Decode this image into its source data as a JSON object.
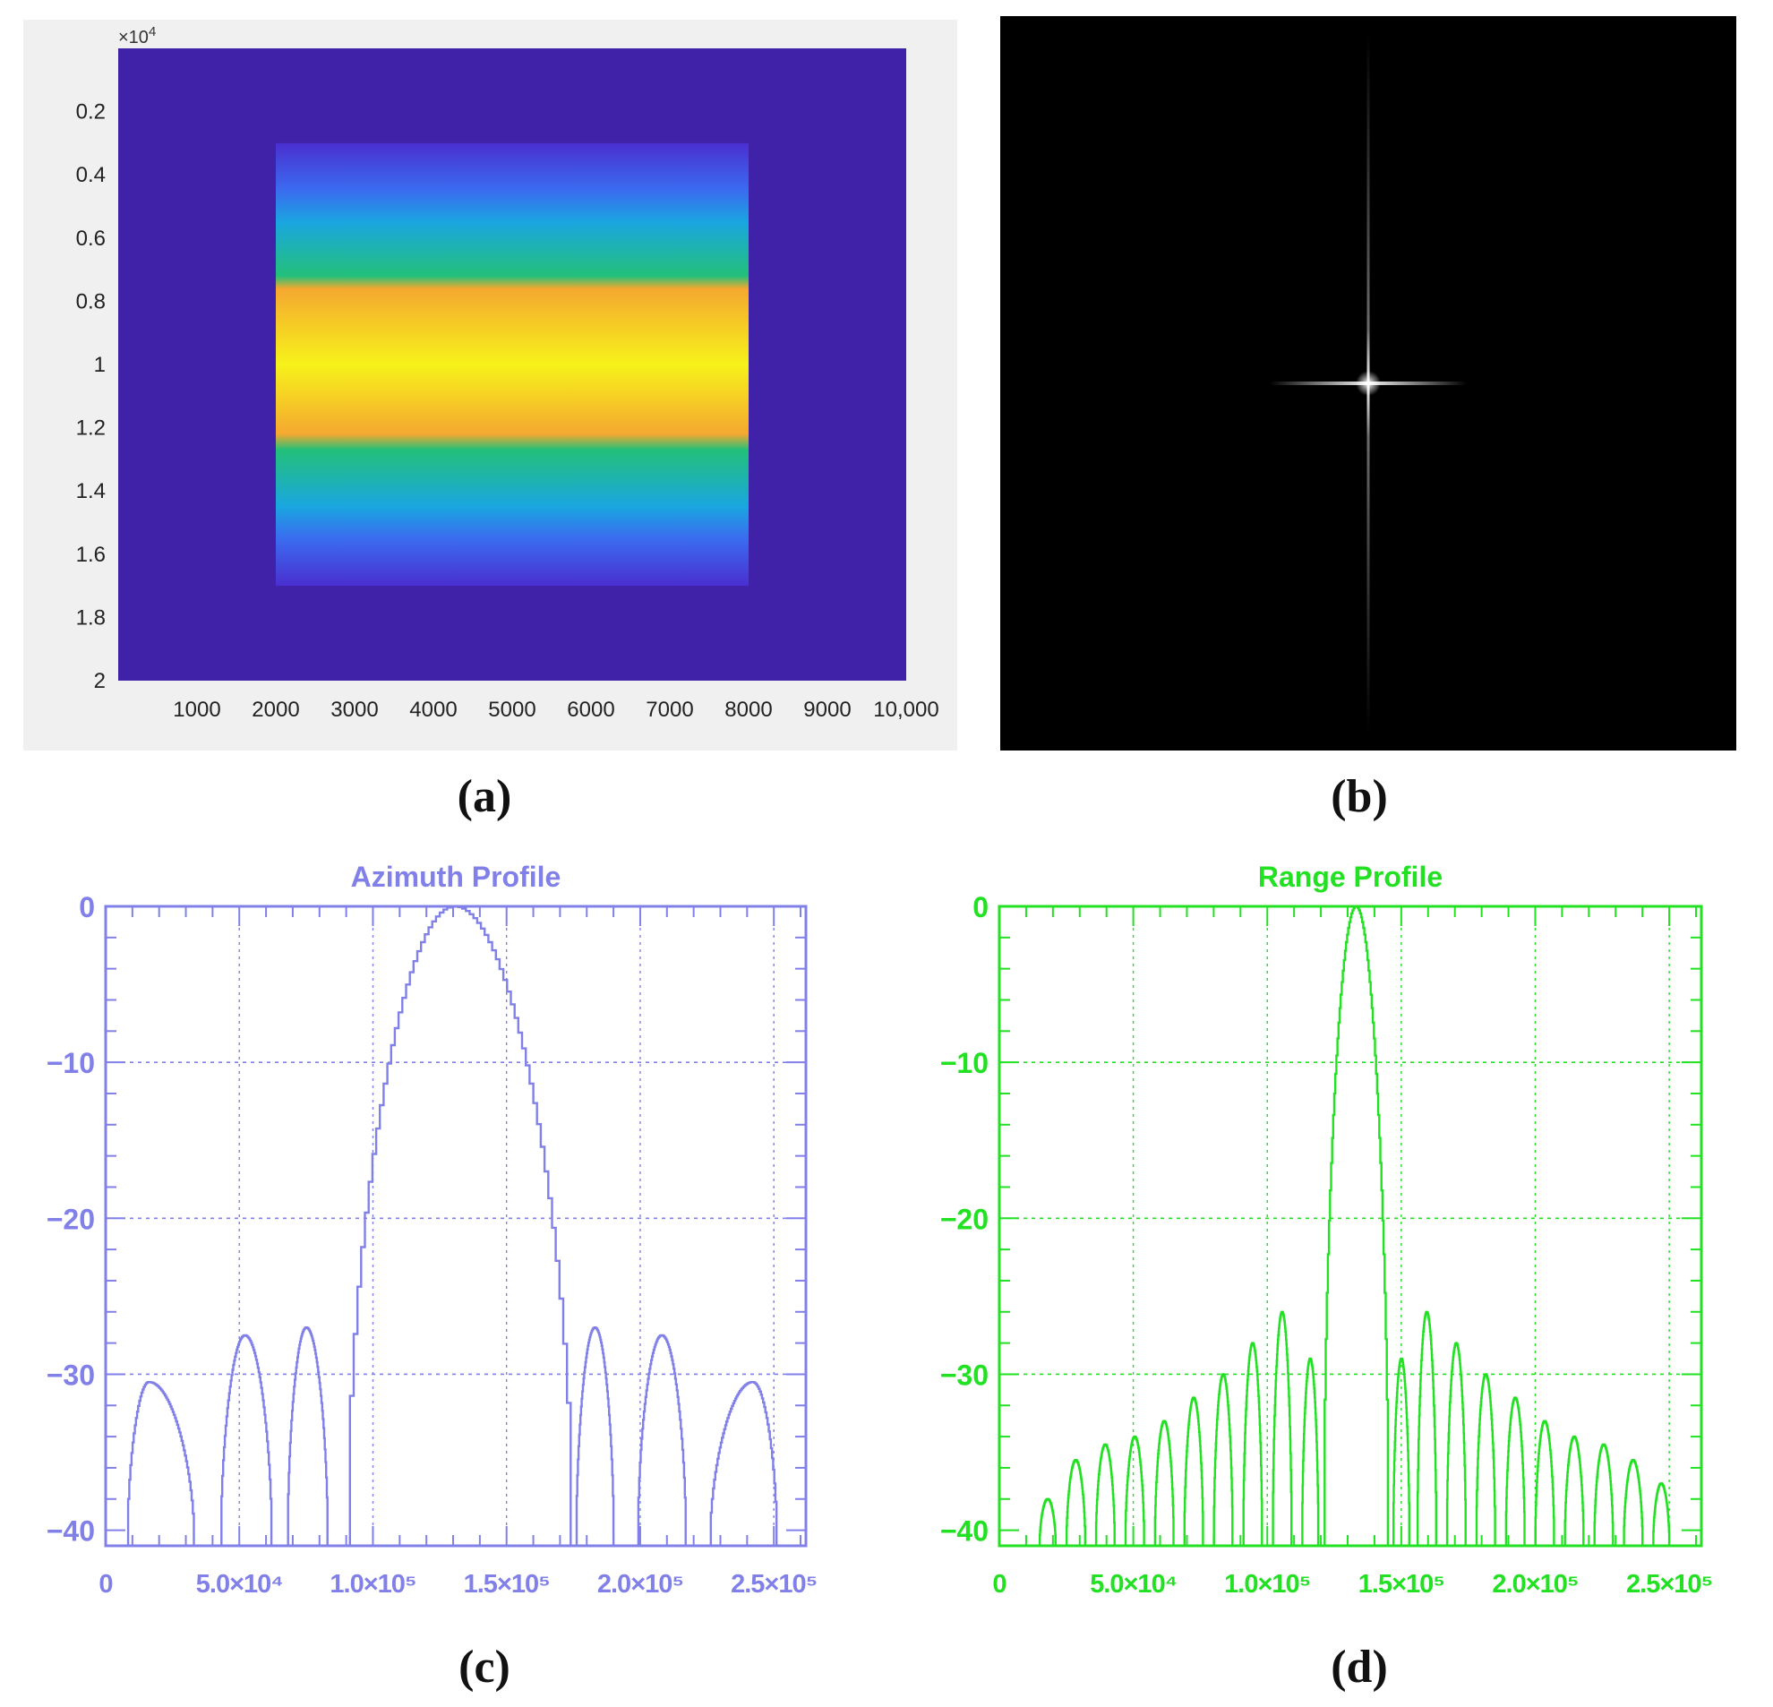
{
  "captions": {
    "a": "(a)",
    "b": "(b)",
    "c": "(c)",
    "d": "(d)"
  },
  "chart_data": [
    {
      "panel": "a",
      "type": "heatmap",
      "title": "",
      "xlabel": "",
      "ylabel": "",
      "y_exponent_label": "×10",
      "y_exponent_power": "4",
      "xlim": [
        0,
        10000
      ],
      "ylim": [
        0,
        2
      ],
      "x_ticks": [
        "1000",
        "2000",
        "3000",
        "4000",
        "5000",
        "6000",
        "7000",
        "8000",
        "9000",
        "10,000"
      ],
      "x_tick_values": [
        1000,
        2000,
        3000,
        4000,
        5000,
        6000,
        7000,
        8000,
        9000,
        10000
      ],
      "y_ticks": [
        "0.2",
        "0.4",
        "0.6",
        "0.8",
        "1",
        "1.2",
        "1.4",
        "1.6",
        "1.8",
        "2"
      ],
      "y_tick_values": [
        0.2,
        0.4,
        0.6,
        0.8,
        1.0,
        1.2,
        1.4,
        1.6,
        1.8,
        2.0
      ],
      "background_color": "#3f22a8",
      "band": {
        "x_range": [
          2000,
          8000
        ],
        "y_range": [
          0.3,
          1.7
        ],
        "gradient_stops": [
          {
            "y": 0.3,
            "color": "#4a2fd0"
          },
          {
            "y": 0.45,
            "color": "#3a6cf0"
          },
          {
            "y": 0.55,
            "color": "#1aa6e0"
          },
          {
            "y": 0.72,
            "color": "#22c07a"
          },
          {
            "y": 0.76,
            "color": "#f5a830"
          },
          {
            "y": 1.0,
            "color": "#f6f21a"
          },
          {
            "y": 1.22,
            "color": "#f5a830"
          },
          {
            "y": 1.27,
            "color": "#22c07a"
          },
          {
            "y": 1.45,
            "color": "#1aa6e0"
          },
          {
            "y": 1.55,
            "color": "#3a6cf0"
          },
          {
            "y": 1.7,
            "color": "#4a2fd0"
          }
        ]
      }
    },
    {
      "panel": "b",
      "type": "heatmap",
      "title": "",
      "background_color": "#000000",
      "description_values": {
        "peak_position_fraction": [
          0.5,
          0.5
        ]
      }
    },
    {
      "panel": "c",
      "type": "line",
      "title": "Azimuth Profile",
      "xlabel": "",
      "ylabel": "",
      "color": "#8080e8",
      "xlim": [
        0,
        262000
      ],
      "ylim": [
        -41,
        0
      ],
      "x_tick_labels": [
        "0",
        "5.0×10⁴",
        "1.0×10⁵",
        "1.5×10⁵",
        "2.0×10⁵",
        "2.5×10⁵"
      ],
      "x_tick_values": [
        0,
        50000,
        100000,
        150000,
        200000,
        250000
      ],
      "y_tick_labels": [
        "0",
        "−10",
        "−20",
        "−30",
        "−40"
      ],
      "y_tick_values": [
        0,
        -10,
        -20,
        -30,
        -40
      ],
      "grid": true,
      "grid_x": [
        50000,
        100000,
        150000,
        200000,
        250000
      ],
      "grid_y": [
        -10,
        -20,
        -30
      ],
      "series": [
        {
          "lobes": [
            {
              "x0": 8000,
              "x1": 33000,
              "peak_x": 16000,
              "peak_y": -30.5
            },
            {
              "x0": 43000,
              "x1": 62000,
              "peak_x": 52000,
              "peak_y": -27.5
            },
            {
              "x0": 68000,
              "x1": 83000,
              "peak_x": 75000,
              "peak_y": -27.0
            },
            {
              "x0": 90000,
              "x1": 174000,
              "peak_x": 130000,
              "peak_y": 0.0
            },
            {
              "x0": 176000,
              "x1": 190000,
              "peak_x": 183000,
              "peak_y": -27.0
            },
            {
              "x0": 199000,
              "x1": 217000,
              "peak_x": 208000,
              "peak_y": -27.5
            },
            {
              "x0": 226000,
              "x1": 251000,
              "peak_x": 242000,
              "peak_y": -30.5
            }
          ]
        }
      ]
    },
    {
      "panel": "d",
      "type": "line",
      "title": "Range Profile",
      "xlabel": "",
      "ylabel": "",
      "color": "#22e022",
      "xlim": [
        0,
        262000
      ],
      "ylim": [
        -41,
        0
      ],
      "x_tick_labels": [
        "0",
        "5.0×10⁴",
        "1.0×10⁵",
        "1.5×10⁵",
        "2.0×10⁵",
        "2.5×10⁵"
      ],
      "x_tick_values": [
        0,
        50000,
        100000,
        150000,
        200000,
        250000
      ],
      "y_tick_labels": [
        "0",
        "−10",
        "−20",
        "−30",
        "−40"
      ],
      "y_tick_values": [
        0,
        -10,
        -20,
        -30,
        -40
      ],
      "grid": true,
      "grid_x": [
        50000,
        100000,
        150000,
        200000,
        250000
      ],
      "grid_y": [
        -10,
        -20,
        -30
      ],
      "series": [
        {
          "lobes": [
            {
              "x0": 15000,
              "x1": 21000,
              "peak_x": 18000,
              "peak_y": -38.0
            },
            {
              "x0": 25000,
              "x1": 32000,
              "peak_x": 28500,
              "peak_y": -35.5
            },
            {
              "x0": 36000,
              "x1": 43000,
              "peak_x": 39500,
              "peak_y": -34.5
            },
            {
              "x0": 47000,
              "x1": 54000,
              "peak_x": 50500,
              "peak_y": -34.0
            },
            {
              "x0": 58000,
              "x1": 65000,
              "peak_x": 61500,
              "peak_y": -33.0
            },
            {
              "x0": 69000,
              "x1": 76000,
              "peak_x": 72500,
              "peak_y": -31.5
            },
            {
              "x0": 80000,
              "x1": 87000,
              "peak_x": 83500,
              "peak_y": -30.0
            },
            {
              "x0": 91000,
              "x1": 98000,
              "peak_x": 94500,
              "peak_y": -28.0
            },
            {
              "x0": 102000,
              "x1": 109000,
              "peak_x": 105500,
              "peak_y": -26.0
            },
            {
              "x0": 113000,
              "x1": 119000,
              "peak_x": 116000,
              "peak_y": -29.0
            },
            {
              "x0": 121000,
              "x1": 145000,
              "peak_x": 133000,
              "peak_y": 0.0
            },
            {
              "x0": 147000,
              "x1": 153000,
              "peak_x": 150000,
              "peak_y": -29.0
            },
            {
              "x0": 156000,
              "x1": 163000,
              "peak_x": 159500,
              "peak_y": -26.0
            },
            {
              "x0": 167000,
              "x1": 174000,
              "peak_x": 170500,
              "peak_y": -28.0
            },
            {
              "x0": 178000,
              "x1": 185000,
              "peak_x": 181500,
              "peak_y": -30.0
            },
            {
              "x0": 189000,
              "x1": 196000,
              "peak_x": 192500,
              "peak_y": -31.5
            },
            {
              "x0": 200000,
              "x1": 207000,
              "peak_x": 203500,
              "peak_y": -33.0
            },
            {
              "x0": 211000,
              "x1": 218000,
              "peak_x": 214500,
              "peak_y": -34.0
            },
            {
              "x0": 222000,
              "x1": 229000,
              "peak_x": 225500,
              "peak_y": -34.5
            },
            {
              "x0": 233000,
              "x1": 240000,
              "peak_x": 236500,
              "peak_y": -35.5
            },
            {
              "x0": 244000,
              "x1": 250000,
              "peak_x": 247000,
              "peak_y": -37.0
            }
          ]
        }
      ]
    }
  ]
}
